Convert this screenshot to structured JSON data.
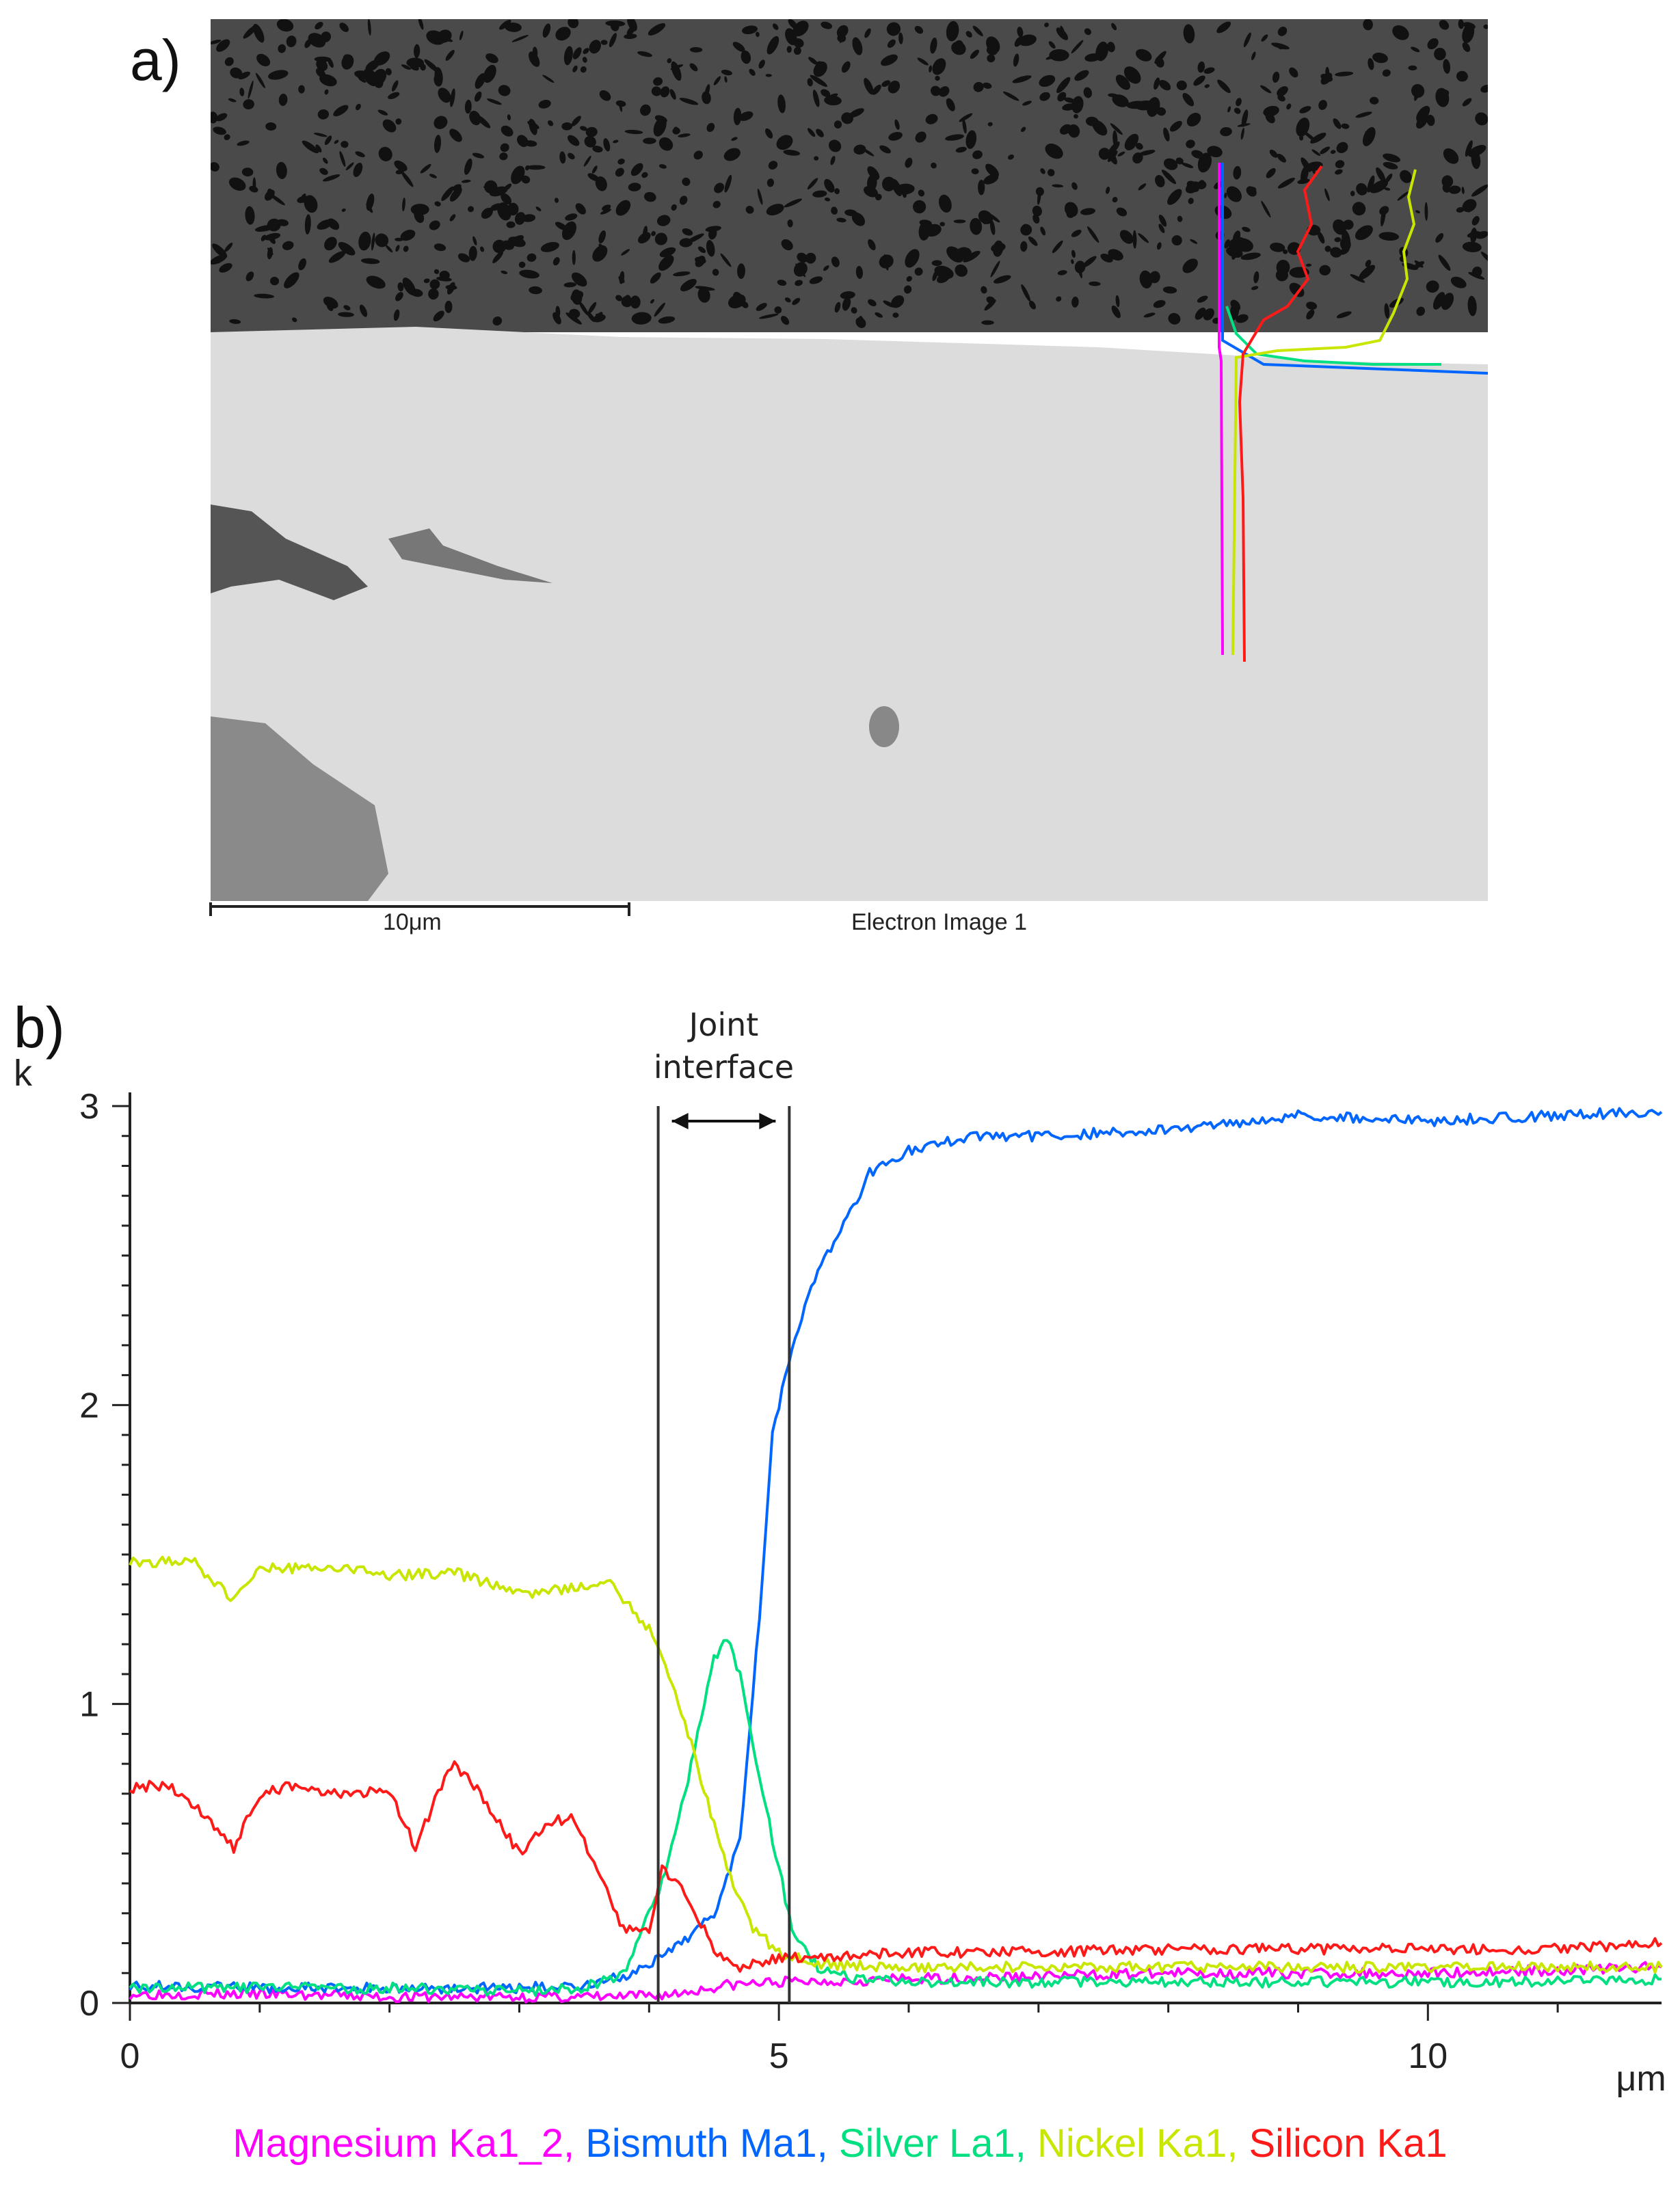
{
  "panel_a": {
    "label": "a)",
    "scale_bar_label": "10μm",
    "image_caption": "Electron Image 1",
    "linescan_colors": [
      "#ff00ff",
      "#0066ff",
      "#00e080",
      "#c8e600",
      "#ff1a1a"
    ]
  },
  "panel_b": {
    "label": "b)",
    "annotation": [
      "Joint",
      "interface"
    ]
  },
  "chart_data": {
    "type": "line",
    "ylabel": "k",
    "xlabel": "μm",
    "xlim": [
      0,
      11.8
    ],
    "ylim": [
      0,
      3
    ],
    "xticks": [
      0,
      5,
      10
    ],
    "yticks": [
      0,
      1,
      2,
      3
    ],
    "interface_lines_x": [
      4.07,
      5.08
    ],
    "series": [
      {
        "name": "Magnesium Ka1_2",
        "color": "#ff00ff",
        "x": [
          0,
          1,
          2,
          3,
          3.8,
          4.2,
          4.6,
          5,
          6,
          7,
          8,
          9,
          10,
          11,
          11.8
        ],
        "y": [
          0.03,
          0.03,
          0.02,
          0.02,
          0.02,
          0.03,
          0.06,
          0.07,
          0.08,
          0.09,
          0.1,
          0.1,
          0.1,
          0.11,
          0.12
        ]
      },
      {
        "name": "Bismuth Ma1",
        "color": "#0066ff",
        "x": [
          0,
          1,
          2,
          3,
          3.5,
          3.9,
          4.2,
          4.5,
          4.7,
          4.85,
          4.95,
          5.1,
          5.3,
          5.5,
          5.7,
          6,
          6.5,
          7,
          8,
          9,
          10,
          11,
          11.8
        ],
        "y": [
          0.06,
          0.05,
          0.05,
          0.05,
          0.06,
          0.1,
          0.18,
          0.3,
          0.55,
          1.3,
          1.9,
          2.2,
          2.45,
          2.6,
          2.78,
          2.85,
          2.9,
          2.9,
          2.92,
          2.97,
          2.95,
          2.97,
          2.98
        ]
      },
      {
        "name": "Silver La1",
        "color": "#00e080",
        "x": [
          0,
          1,
          2,
          3,
          3.5,
          3.8,
          4.1,
          4.3,
          4.5,
          4.6,
          4.7,
          4.9,
          5.1,
          5.3,
          5.6,
          6,
          7,
          8,
          9,
          10,
          11,
          11.8
        ],
        "y": [
          0.05,
          0.05,
          0.05,
          0.04,
          0.05,
          0.1,
          0.4,
          0.75,
          1.15,
          1.22,
          1.1,
          0.65,
          0.25,
          0.12,
          0.08,
          0.07,
          0.07,
          0.07,
          0.07,
          0.07,
          0.07,
          0.08
        ]
      },
      {
        "name": "Nickel Ka1",
        "color": "#c8e600",
        "x": [
          0,
          0.5,
          0.8,
          1,
          1.5,
          2,
          2.5,
          3,
          3.3,
          3.7,
          4.0,
          4.2,
          4.4,
          4.6,
          4.8,
          5.0,
          5.3,
          6,
          7,
          8,
          9,
          10,
          11,
          11.8
        ],
        "y": [
          1.48,
          1.47,
          1.35,
          1.45,
          1.46,
          1.43,
          1.44,
          1.37,
          1.38,
          1.4,
          1.25,
          1.05,
          0.75,
          0.45,
          0.25,
          0.17,
          0.13,
          0.12,
          0.12,
          0.12,
          0.12,
          0.12,
          0.12,
          0.12
        ]
      },
      {
        "name": "Silicon Ka1",
        "color": "#ff1a1a",
        "x": [
          0,
          0.3,
          0.6,
          0.8,
          1.0,
          1.3,
          1.6,
          2.0,
          2.2,
          2.4,
          2.5,
          2.7,
          3.0,
          3.2,
          3.4,
          3.6,
          3.8,
          4.0,
          4.1,
          4.3,
          4.5,
          4.7,
          5.0,
          5.5,
          6,
          7,
          8,
          9,
          10,
          11,
          11.8
        ],
        "y": [
          0.72,
          0.73,
          0.62,
          0.52,
          0.7,
          0.73,
          0.7,
          0.71,
          0.52,
          0.73,
          0.8,
          0.7,
          0.5,
          0.6,
          0.62,
          0.45,
          0.25,
          0.25,
          0.45,
          0.35,
          0.18,
          0.12,
          0.15,
          0.16,
          0.17,
          0.17,
          0.18,
          0.18,
          0.18,
          0.18,
          0.2
        ]
      }
    ]
  }
}
